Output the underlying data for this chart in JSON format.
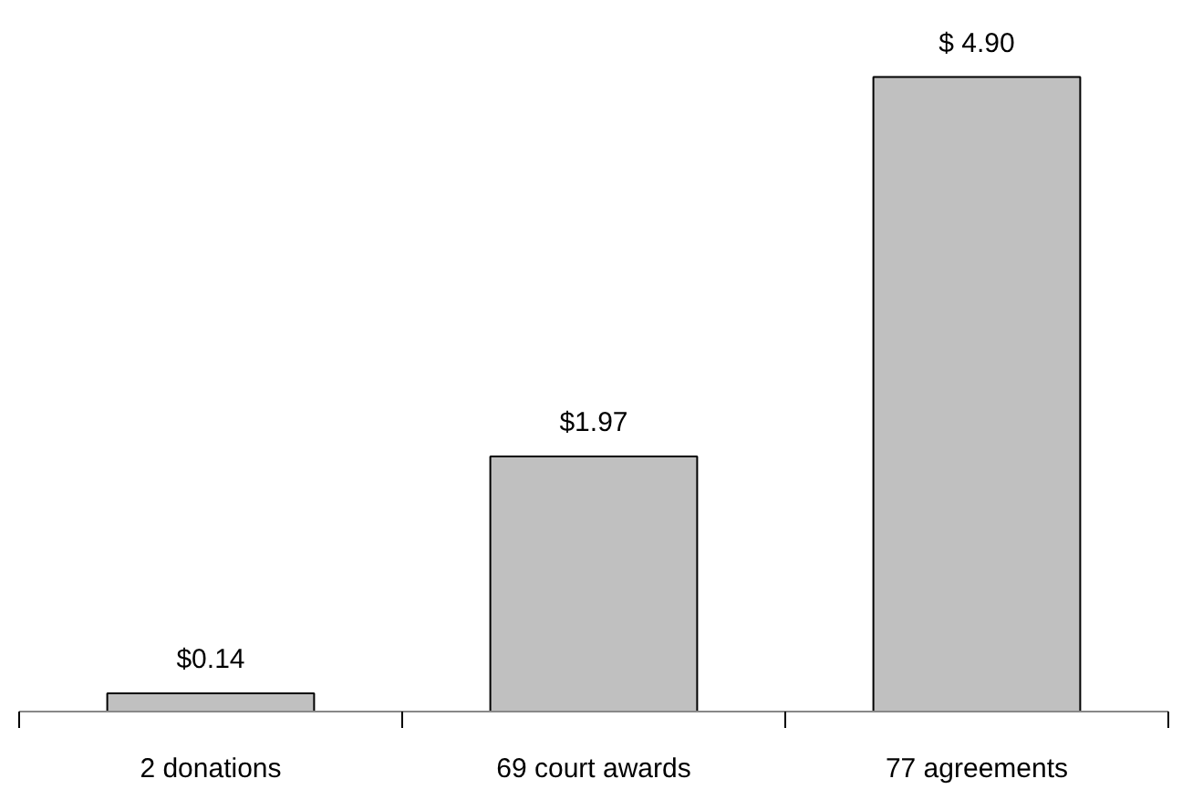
{
  "chart_data": {
    "type": "bar",
    "categories": [
      "2 donations",
      "69 court awards",
      "77 agreements"
    ],
    "values": [
      0.14,
      1.97,
      4.9
    ],
    "value_labels": [
      "$0.14",
      "$1.97",
      "$ 4.90"
    ],
    "color": "#c0c0c0",
    "grid": false
  }
}
